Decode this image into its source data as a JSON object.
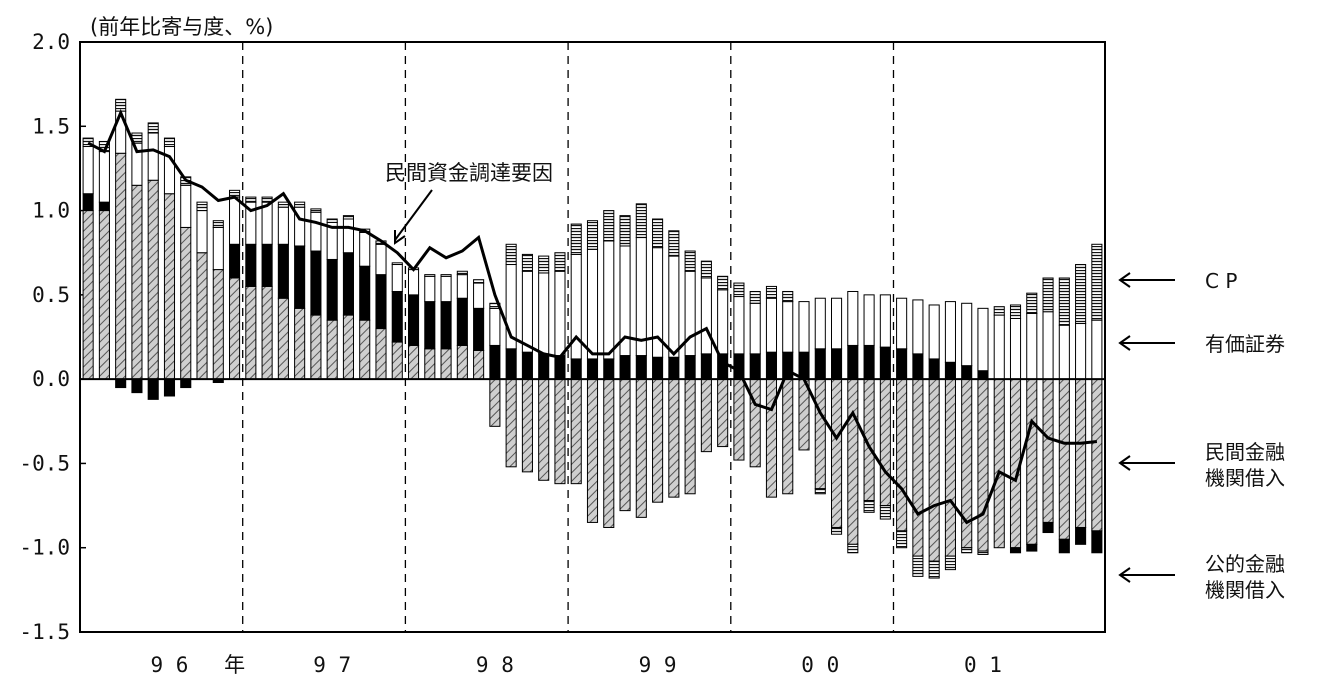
{
  "chart_data": {
    "type": "bar",
    "ylabel": "(前年比寄与度、%)",
    "ylim": [
      -1.5,
      2.0
    ],
    "yticks": [
      "2.0",
      "1.5",
      "1.0",
      "0.5",
      "0.0",
      "-0.5",
      "-1.0",
      "-1.5"
    ],
    "x_labels": [
      {
        "text": "9 6",
        "at_bar": 5
      },
      {
        "text": "年",
        "at_bar": 9
      },
      {
        "text": "9 7",
        "at_bar": 15
      },
      {
        "text": "9 8",
        "at_bar": 25
      },
      {
        "text": "9 9",
        "at_bar": 35
      },
      {
        "text": "0 0",
        "at_bar": 45
      },
      {
        "text": "0 1",
        "at_bar": 55
      }
    ],
    "year_dividers_after_bar": [
      9.5,
      19.5,
      29.5,
      39.5,
      49.5
    ],
    "line_series_label": "民間資金調達要因",
    "series": [
      {
        "name": "CP",
        "color": "#ffffff",
        "pattern": "brick",
        "values": [
          0.05,
          0.06,
          0.07,
          0.06,
          0.06,
          0.05,
          0.05,
          0.05,
          0.04,
          0.04,
          0.03,
          0.03,
          0.03,
          0.03,
          0.02,
          0.02,
          0.02,
          0.02,
          0.02,
          0.01,
          0.01,
          0.01,
          0.01,
          0.02,
          0.02,
          0.03,
          0.12,
          0.1,
          0.1,
          0.11,
          0.18,
          0.17,
          0.18,
          0.18,
          0.2,
          0.17,
          0.15,
          0.12,
          0.1,
          0.08,
          0.08,
          0.07,
          0.07,
          0.06,
          0.0,
          -0.03,
          -0.04,
          -0.05,
          -0.07,
          -0.08,
          -0.1,
          -0.12,
          -0.1,
          -0.08,
          -0.03,
          -0.02,
          0.05,
          0.08,
          0.12,
          0.2,
          0.28,
          0.35,
          0.45
        ]
      },
      {
        "name": "有価証券",
        "color": "#ffffff",
        "pattern": "none",
        "values": [
          0.28,
          0.3,
          0.25,
          0.25,
          0.28,
          0.28,
          0.25,
          0.25,
          0.25,
          0.28,
          0.25,
          0.25,
          0.22,
          0.23,
          0.23,
          0.22,
          0.2,
          0.2,
          0.18,
          0.16,
          0.15,
          0.15,
          0.15,
          0.14,
          0.15,
          0.22,
          0.5,
          0.48,
          0.48,
          0.5,
          0.62,
          0.65,
          0.7,
          0.65,
          0.7,
          0.65,
          0.6,
          0.5,
          0.45,
          0.38,
          0.34,
          0.3,
          0.32,
          0.3,
          0.3,
          0.3,
          0.3,
          0.32,
          0.3,
          0.31,
          0.3,
          0.32,
          0.32,
          0.36,
          0.37,
          0.37,
          0.38,
          0.36,
          0.39,
          0.4,
          0.32,
          0.33,
          0.35
        ]
      },
      {
        "name": "民間金融機関借入",
        "color": "#bfbfbf",
        "pattern": "hatch",
        "values": [
          1.0,
          1.0,
          1.34,
          1.15,
          1.18,
          1.1,
          0.9,
          0.75,
          0.65,
          0.6,
          0.55,
          0.55,
          0.48,
          0.42,
          0.38,
          0.35,
          0.38,
          0.35,
          0.3,
          0.22,
          0.2,
          0.18,
          0.18,
          0.2,
          0.17,
          -0.28,
          -0.52,
          -0.55,
          -0.6,
          -0.62,
          -0.62,
          -0.85,
          -0.88,
          -0.78,
          -0.82,
          -0.73,
          -0.7,
          -0.68,
          -0.43,
          -0.4,
          -0.48,
          -0.52,
          -0.7,
          -0.68,
          -0.42,
          -0.65,
          -0.88,
          -0.98,
          -0.72,
          -0.75,
          -0.9,
          -1.05,
          -1.08,
          -1.05,
          -1.0,
          -1.02,
          -1.0,
          -1.0,
          -0.98,
          -0.85,
          -0.95,
          -0.88,
          -0.9
        ]
      },
      {
        "name": "公的金融機関借入",
        "color": "#000000",
        "pattern": "solid",
        "values": [
          0.1,
          0.05,
          -0.05,
          -0.08,
          -0.12,
          -0.1,
          -0.05,
          0.0,
          -0.02,
          0.2,
          0.25,
          0.25,
          0.32,
          0.37,
          0.38,
          0.36,
          0.37,
          0.32,
          0.32,
          0.3,
          0.3,
          0.28,
          0.28,
          0.28,
          0.25,
          0.2,
          0.18,
          0.16,
          0.15,
          0.14,
          0.12,
          0.12,
          0.12,
          0.14,
          0.14,
          0.13,
          0.13,
          0.14,
          0.15,
          0.15,
          0.15,
          0.15,
          0.16,
          0.16,
          0.16,
          0.18,
          0.18,
          0.2,
          0.2,
          0.19,
          0.18,
          0.15,
          0.12,
          0.1,
          0.08,
          0.05,
          0.0,
          -0.03,
          -0.04,
          -0.06,
          -0.08,
          -0.1,
          -0.13
        ]
      }
    ],
    "line_values": [
      1.4,
      1.35,
      1.58,
      1.35,
      1.36,
      1.32,
      1.18,
      1.14,
      1.06,
      1.08,
      1.0,
      1.03,
      1.1,
      0.95,
      0.93,
      0.9,
      0.9,
      0.88,
      0.82,
      0.75,
      0.65,
      0.78,
      0.72,
      0.76,
      0.84,
      0.5,
      0.25,
      0.2,
      0.15,
      0.13,
      0.25,
      0.15,
      0.15,
      0.25,
      0.23,
      0.25,
      0.15,
      0.25,
      0.3,
      0.1,
      0.05,
      -0.15,
      -0.18,
      0.05,
      0.0,
      -0.2,
      -0.35,
      -0.2,
      -0.4,
      -0.55,
      -0.65,
      -0.8,
      -0.75,
      -0.72,
      -0.85,
      -0.8,
      -0.55,
      -0.6,
      -0.25,
      -0.35,
      -0.38,
      -0.38,
      -0.37
    ],
    "legend": [
      {
        "label": "C P",
        "line1": "C P"
      },
      {
        "label": "有価証券",
        "line1": "有価証券"
      },
      {
        "label": "民間金融機関借入",
        "line1": "民間金融",
        "line2": "機関借入"
      },
      {
        "label": "公的金融機関借入",
        "line1": "公的金融",
        "line2": "機関借入"
      }
    ]
  }
}
